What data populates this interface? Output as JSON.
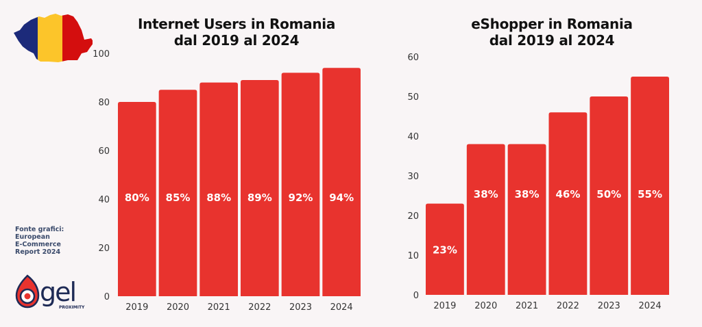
{
  "source_note": {
    "lines": [
      "Fonte grafici:",
      "European",
      "E-Commerce",
      "Report 2024"
    ]
  },
  "logo": {
    "name": "gel",
    "subtitle": "PROXIMITY",
    "icon": "gel-drop-logo-icon"
  },
  "decorations": {
    "flag_map": "romania-flag-map-icon",
    "flag_colors": [
      "#1c2a7a",
      "#fcc52a",
      "#d40e0e"
    ]
  },
  "colors": {
    "bar": "#e8332e",
    "background": "#f9f5f6"
  },
  "chart_data": [
    {
      "type": "bar",
      "title_lines": [
        "Internet Users in Romania",
        "dal 2019 al 2024"
      ],
      "categories": [
        "2019",
        "2020",
        "2021",
        "2022",
        "2023",
        "2024"
      ],
      "values": [
        80,
        85,
        88,
        89,
        92,
        94
      ],
      "data_labels": [
        "80%",
        "85%",
        "88%",
        "89%",
        "92%",
        "94%"
      ],
      "yticks": [
        0,
        20,
        40,
        60,
        80,
        100
      ],
      "ylim": [
        0,
        100
      ],
      "xlabel": "",
      "ylabel": "",
      "grid": false,
      "legend": "none"
    },
    {
      "type": "bar",
      "title_lines": [
        "eShopper in Romania",
        "dal 2019 al 2024"
      ],
      "categories": [
        "2019",
        "2020",
        "2021",
        "2022",
        "2023",
        "2024"
      ],
      "values": [
        23,
        38,
        38,
        46,
        50,
        55
      ],
      "data_labels": [
        "23%",
        "38%",
        "38%",
        "46%",
        "50%",
        "55%"
      ],
      "yticks": [
        0,
        10,
        20,
        30,
        40,
        50,
        60
      ],
      "ylim": [
        0,
        60
      ],
      "xlabel": "",
      "ylabel": "",
      "grid": false,
      "legend": "none"
    }
  ]
}
